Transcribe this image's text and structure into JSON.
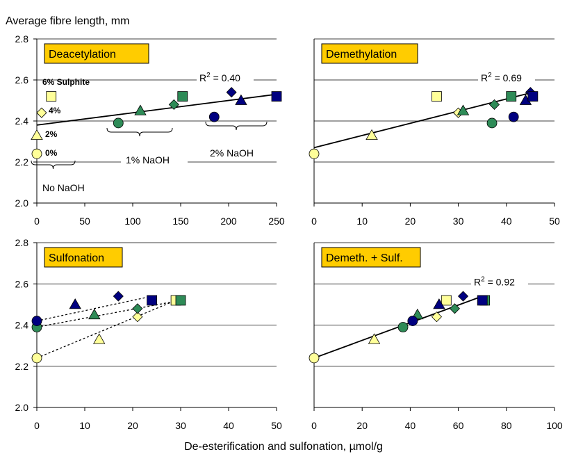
{
  "figure": {
    "ylabel": "Average fibre length, mm",
    "xlabel": "De-esterification and sulfonation, µmol/g"
  },
  "colors": {
    "pale_yellow": "#ffff99",
    "green": "#2e8b57",
    "navy": "#000080",
    "title_box": "#ffcc00"
  },
  "chart_data": [
    {
      "type": "scatter",
      "title": "Deacetylation",
      "xlim": [
        0,
        250
      ],
      "ylim": [
        2.0,
        2.8
      ],
      "xticks": [
        "0",
        "50",
        "100",
        "150",
        "200",
        "250"
      ],
      "yticks": [
        "2.0",
        "2.2",
        "2.4",
        "2.6",
        "2.8"
      ],
      "grid": true,
      "points": [
        {
          "x": 0,
          "y": 2.24,
          "marker": "circle",
          "color": "#ffff99"
        },
        {
          "x": 0,
          "y": 2.33,
          "marker": "triangle",
          "color": "#ffff99"
        },
        {
          "x": 5,
          "y": 2.44,
          "marker": "diamond",
          "color": "#ffff99"
        },
        {
          "x": 15,
          "y": 2.52,
          "marker": "square",
          "color": "#ffff99"
        },
        {
          "x": 85,
          "y": 2.39,
          "marker": "circle",
          "color": "#2e8b57"
        },
        {
          "x": 108,
          "y": 2.45,
          "marker": "triangle",
          "color": "#2e8b57"
        },
        {
          "x": 143,
          "y": 2.48,
          "marker": "diamond",
          "color": "#2e8b57"
        },
        {
          "x": 152,
          "y": 2.52,
          "marker": "square",
          "color": "#2e8b57"
        },
        {
          "x": 185,
          "y": 2.42,
          "marker": "circle",
          "color": "#000080"
        },
        {
          "x": 213,
          "y": 2.5,
          "marker": "triangle",
          "color": "#000080"
        },
        {
          "x": 203,
          "y": 2.54,
          "marker": "diamond",
          "color": "#000080"
        },
        {
          "x": 250,
          "y": 2.52,
          "marker": "square",
          "color": "#000080"
        }
      ],
      "fit_lines": [
        {
          "x": [
            0,
            250
          ],
          "y": [
            2.38,
            2.53
          ],
          "style": "solid"
        }
      ],
      "r2": "R2 = 0.40",
      "annotations": {
        "sulphite_6": "6% Sulphite",
        "sulphite_4": "4%",
        "sulphite_2": "2%",
        "sulphite_0": "0%",
        "naoh_1": "1% NaOH",
        "naoh_2": "2% NaOH",
        "naoh_0": "No NaOH"
      }
    },
    {
      "type": "scatter",
      "title": "Demethylation",
      "xlim": [
        0,
        50
      ],
      "ylim": [
        2.0,
        2.8
      ],
      "xticks": [
        "0",
        "10",
        "20",
        "30",
        "40",
        "50"
      ],
      "grid": true,
      "points": [
        {
          "x": 0,
          "y": 2.24,
          "marker": "circle",
          "color": "#ffff99"
        },
        {
          "x": 12,
          "y": 2.33,
          "marker": "triangle",
          "color": "#ffff99"
        },
        {
          "x": 30,
          "y": 2.44,
          "marker": "diamond",
          "color": "#ffff99"
        },
        {
          "x": 25.5,
          "y": 2.52,
          "marker": "square",
          "color": "#ffff99"
        },
        {
          "x": 37,
          "y": 2.39,
          "marker": "circle",
          "color": "#2e8b57"
        },
        {
          "x": 31,
          "y": 2.45,
          "marker": "triangle",
          "color": "#2e8b57"
        },
        {
          "x": 37.5,
          "y": 2.48,
          "marker": "diamond",
          "color": "#2e8b57"
        },
        {
          "x": 41,
          "y": 2.52,
          "marker": "square",
          "color": "#2e8b57"
        },
        {
          "x": 41.5,
          "y": 2.42,
          "marker": "circle",
          "color": "#000080"
        },
        {
          "x": 44,
          "y": 2.5,
          "marker": "triangle",
          "color": "#000080"
        },
        {
          "x": 45,
          "y": 2.54,
          "marker": "diamond",
          "color": "#000080"
        },
        {
          "x": 45.5,
          "y": 2.52,
          "marker": "square",
          "color": "#000080"
        }
      ],
      "fit_lines": [
        {
          "x": [
            0,
            45.5
          ],
          "y": [
            2.27,
            2.54
          ],
          "style": "solid"
        }
      ],
      "r2": "R2 = 0.69"
    },
    {
      "type": "scatter",
      "title": "Sulfonation",
      "xlim": [
        0,
        50
      ],
      "ylim": [
        2.0,
        2.8
      ],
      "xticks": [
        "0",
        "10",
        "20",
        "30",
        "40",
        "50"
      ],
      "yticks": [
        "2.0",
        "2.2",
        "2.4",
        "2.6",
        "2.8"
      ],
      "grid": true,
      "points": [
        {
          "x": 0,
          "y": 2.24,
          "marker": "circle",
          "color": "#ffff99"
        },
        {
          "x": 13,
          "y": 2.33,
          "marker": "triangle",
          "color": "#ffff99"
        },
        {
          "x": 21,
          "y": 2.44,
          "marker": "diamond",
          "color": "#ffff99"
        },
        {
          "x": 29,
          "y": 2.52,
          "marker": "square",
          "color": "#ffff99"
        },
        {
          "x": 0,
          "y": 2.39,
          "marker": "circle",
          "color": "#2e8b57"
        },
        {
          "x": 12,
          "y": 2.45,
          "marker": "triangle",
          "color": "#2e8b57"
        },
        {
          "x": 21,
          "y": 2.48,
          "marker": "diamond",
          "color": "#2e8b57"
        },
        {
          "x": 30,
          "y": 2.52,
          "marker": "square",
          "color": "#2e8b57"
        },
        {
          "x": 0,
          "y": 2.42,
          "marker": "circle",
          "color": "#000080"
        },
        {
          "x": 8,
          "y": 2.5,
          "marker": "triangle",
          "color": "#000080"
        },
        {
          "x": 17,
          "y": 2.54,
          "marker": "diamond",
          "color": "#000080"
        },
        {
          "x": 24,
          "y": 2.52,
          "marker": "square",
          "color": "#000080"
        }
      ],
      "fit_lines": [
        {
          "x": [
            0,
            29
          ],
          "y": [
            2.24,
            2.52
          ],
          "style": "dotted"
        },
        {
          "x": [
            0,
            30
          ],
          "y": [
            2.39,
            2.52
          ],
          "style": "dotted"
        },
        {
          "x": [
            0,
            24
          ],
          "y": [
            2.42,
            2.54
          ],
          "style": "dotted"
        }
      ]
    },
    {
      "type": "scatter",
      "title": "Demeth. + Sulf.",
      "xlim": [
        0,
        100
      ],
      "ylim": [
        2.0,
        2.8
      ],
      "xticks": [
        "0",
        "20",
        "40",
        "60",
        "80",
        "100"
      ],
      "grid": true,
      "points": [
        {
          "x": 0,
          "y": 2.24,
          "marker": "circle",
          "color": "#ffff99"
        },
        {
          "x": 25,
          "y": 2.33,
          "marker": "triangle",
          "color": "#ffff99"
        },
        {
          "x": 51,
          "y": 2.44,
          "marker": "diamond",
          "color": "#ffff99"
        },
        {
          "x": 55,
          "y": 2.52,
          "marker": "square",
          "color": "#ffff99"
        },
        {
          "x": 37,
          "y": 2.39,
          "marker": "circle",
          "color": "#2e8b57"
        },
        {
          "x": 43,
          "y": 2.45,
          "marker": "triangle",
          "color": "#2e8b57"
        },
        {
          "x": 58.5,
          "y": 2.48,
          "marker": "diamond",
          "color": "#2e8b57"
        },
        {
          "x": 71,
          "y": 2.52,
          "marker": "square",
          "color": "#2e8b57"
        },
        {
          "x": 41,
          "y": 2.42,
          "marker": "circle",
          "color": "#000080"
        },
        {
          "x": 52,
          "y": 2.5,
          "marker": "triangle",
          "color": "#000080"
        },
        {
          "x": 62,
          "y": 2.54,
          "marker": "diamond",
          "color": "#000080"
        },
        {
          "x": 70,
          "y": 2.52,
          "marker": "square",
          "color": "#000080"
        }
      ],
      "fit_lines": [
        {
          "x": [
            0,
            70
          ],
          "y": [
            2.24,
            2.54
          ],
          "style": "solid"
        }
      ],
      "r2": "R2 = 0.92"
    }
  ]
}
